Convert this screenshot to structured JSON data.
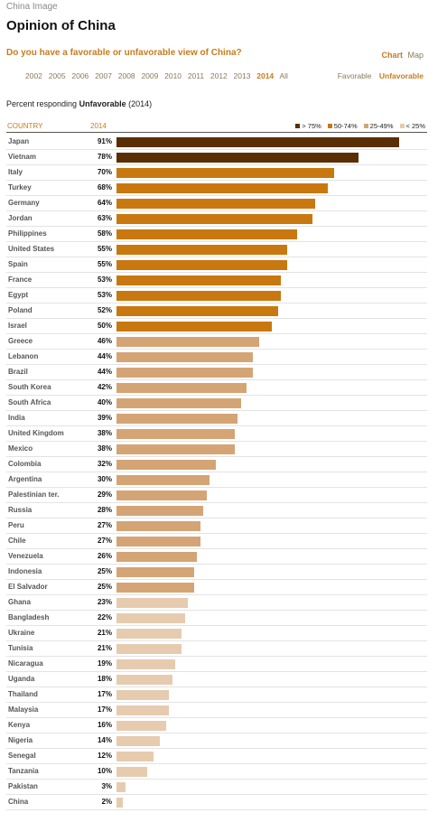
{
  "top_label": "China Image",
  "title": "Opinion of China",
  "question": "Do you have a favorable or unfavorable view of China?",
  "view_tabs": [
    {
      "label": "Chart",
      "active": true
    },
    {
      "label": "Map",
      "active": false
    }
  ],
  "years": [
    {
      "label": "2002",
      "active": false
    },
    {
      "label": "2005",
      "active": false
    },
    {
      "label": "2006",
      "active": false
    },
    {
      "label": "2007",
      "active": false
    },
    {
      "label": "2008",
      "active": false
    },
    {
      "label": "2009",
      "active": false
    },
    {
      "label": "2010",
      "active": false
    },
    {
      "label": "2011",
      "active": false
    },
    {
      "label": "2012",
      "active": false
    },
    {
      "label": "2013",
      "active": false
    },
    {
      "label": "2014",
      "active": true
    },
    {
      "label": "All",
      "active": false
    }
  ],
  "measure_tabs": [
    {
      "label": "Favorable",
      "active": false
    },
    {
      "label": "Unfavorable",
      "active": true
    }
  ],
  "subtitle": {
    "prefix": "Percent responding",
    "measure": "Unfavorable",
    "suffix": "(2014)"
  },
  "colors": {
    "accent": "#c87b1e",
    "band_75_plus": "#5a2e04",
    "band_50_74": "#c8780e",
    "band_25_49": "#d4a475",
    "band_under_25": "#e6cbaf"
  },
  "chart_data": {
    "type": "bar",
    "orientation": "horizontal",
    "column_headers": {
      "country": "COUNTRY",
      "year": "2014"
    },
    "xlim": [
      0,
      100
    ],
    "unit": "%",
    "legend": [
      {
        "label": "> 75%",
        "min": 75,
        "color": "#5a2e04"
      },
      {
        "label": "50-74%",
        "min": 50,
        "color": "#c8780e"
      },
      {
        "label": "25-49%",
        "min": 25,
        "color": "#d4a475"
      },
      {
        "label": "< 25%",
        "min": 0,
        "color": "#e6cbaf"
      }
    ],
    "categories": [
      "Japan",
      "Vietnam",
      "Italy",
      "Turkey",
      "Germany",
      "Jordan",
      "Philippines",
      "United States",
      "Spain",
      "France",
      "Egypt",
      "Poland",
      "Israel",
      "Greece",
      "Lebanon",
      "Brazil",
      "South Korea",
      "South Africa",
      "India",
      "United Kingdom",
      "Mexico",
      "Colombia",
      "Argentina",
      "Palestinian ter.",
      "Russia",
      "Peru",
      "Chile",
      "Venezuela",
      "Indonesia",
      "El Salvador",
      "Ghana",
      "Bangladesh",
      "Ukraine",
      "Tunisia",
      "Nicaragua",
      "Uganda",
      "Thailand",
      "Malaysia",
      "Kenya",
      "Nigeria",
      "Senegal",
      "Tanzania",
      "Pakistan",
      "China"
    ],
    "values": [
      91,
      78,
      70,
      68,
      64,
      63,
      58,
      55,
      55,
      53,
      53,
      52,
      50,
      46,
      44,
      44,
      42,
      40,
      39,
      38,
      38,
      32,
      30,
      29,
      28,
      27,
      27,
      26,
      25,
      25,
      23,
      22,
      21,
      21,
      19,
      18,
      17,
      17,
      16,
      14,
      12,
      10,
      3,
      2
    ]
  }
}
